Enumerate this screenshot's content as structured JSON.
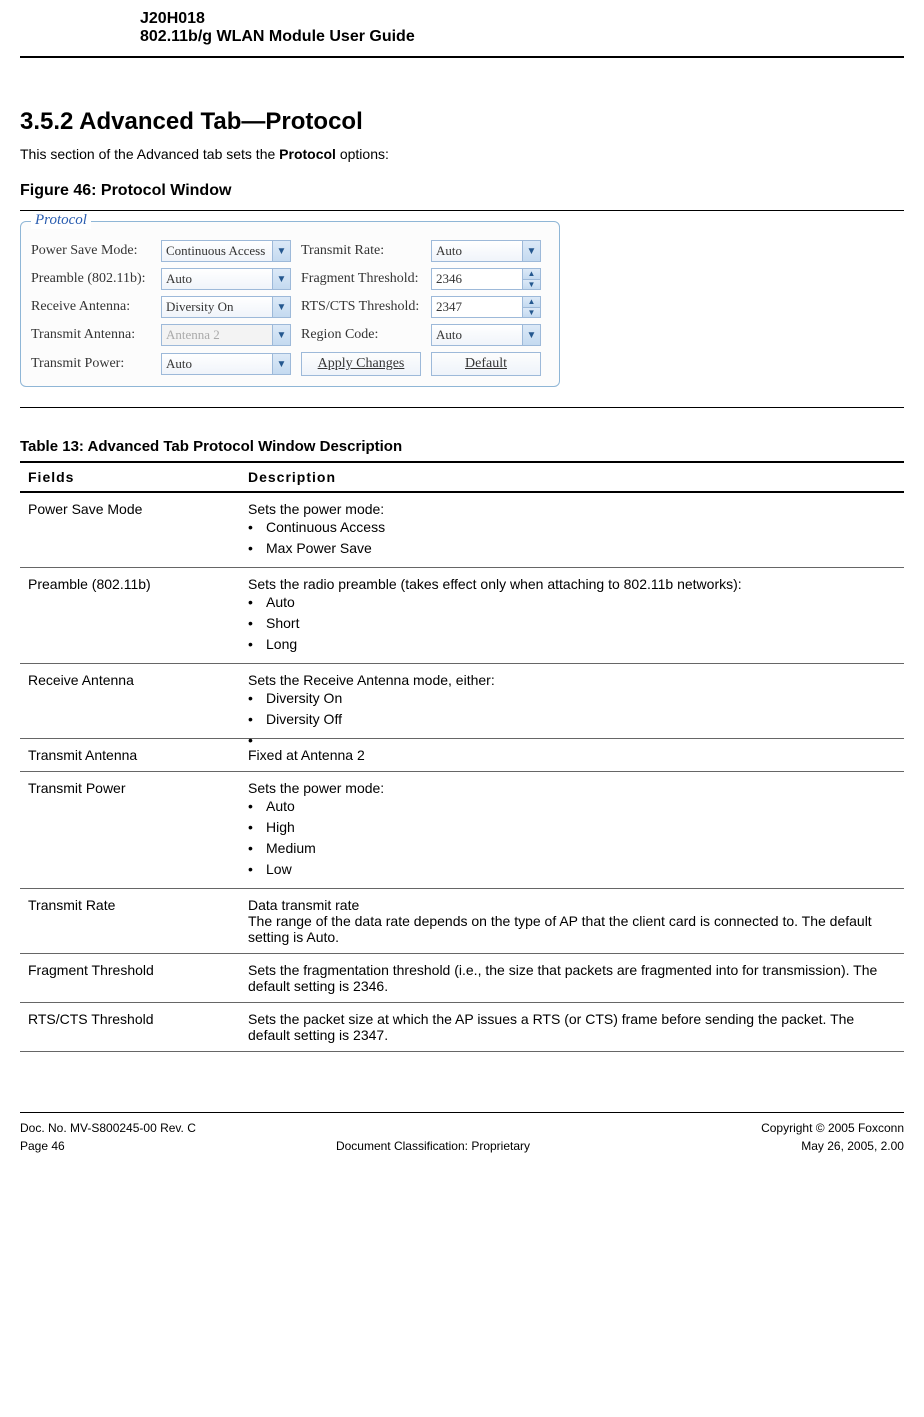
{
  "header": {
    "code": "J20H018",
    "title": "802.11b/g WLAN Module User Guide"
  },
  "section": {
    "number_title": "3.5.2     Advanced Tab—Protocol",
    "intro_prefix": "This section of the Advanced tab sets the ",
    "intro_bold": "Protocol",
    "intro_suffix": " options:"
  },
  "figure": {
    "caption": "Figure 46: Protocol Window",
    "legend": "Protocol",
    "rows": {
      "power_save_label": "Power Save Mode:",
      "power_save_value": "Continuous Access",
      "transmit_rate_label": "Transmit Rate:",
      "transmit_rate_value": "Auto",
      "preamble_label": "Preamble (802.11b):",
      "preamble_value": "Auto",
      "frag_label": "Fragment Threshold:",
      "frag_value": "2346",
      "recv_ant_label": "Receive Antenna:",
      "recv_ant_value": "Diversity On",
      "rts_label": "RTS/CTS Threshold:",
      "rts_value": "2347",
      "tx_ant_label": "Transmit Antenna:",
      "tx_ant_value": "Antenna 2",
      "region_label": "Region Code:",
      "region_value": "Auto",
      "tx_power_label": "Transmit Power:",
      "tx_power_value": "Auto",
      "apply_btn": "Apply Changes",
      "default_btn": "Default"
    }
  },
  "table": {
    "caption": "Table 13:    Advanced Tab Protocol Window Description",
    "header_fields": "Fields",
    "header_desc": "Description",
    "rows": [
      {
        "field": "Power Save Mode",
        "desc_lead": "Sets the power mode:",
        "bullets": [
          "Continuous Access",
          "Max Power Save"
        ]
      },
      {
        "field": "Preamble (802.11b)",
        "desc_lead": "Sets the radio preamble (takes effect only when attaching to 802.11b networks):",
        "bullets": [
          "Auto",
          "Short",
          "Long"
        ]
      },
      {
        "field": "Receive Antenna",
        "desc_lead": "Sets the Receive Antenna mode, either:",
        "bullets": [
          "Diversity On",
          "Diversity Off",
          ""
        ]
      },
      {
        "field": "Transmit Antenna",
        "desc_lead": "Fixed at Antenna 2",
        "bullets": []
      },
      {
        "field": "Transmit Power",
        "desc_lead": "Sets the power mode:",
        "bullets": [
          "Auto",
          "High",
          "Medium",
          "Low"
        ]
      },
      {
        "field": "Transmit Rate",
        "desc_lead": "Data transmit rate",
        "desc_tail": "The range of the data rate depends on the type of AP that the client card is connected to. The default setting is Auto.",
        "bullets": []
      },
      {
        "field": "Fragment Threshold",
        "desc_lead": "Sets the fragmentation threshold (i.e., the size that packets are fragmented into for transmission). The default setting is 2346.",
        "bullets": []
      },
      {
        "field": "RTS/CTS Threshold",
        "desc_lead": "Sets the packet size at which the AP issues a RTS (or CTS) frame before sending the packet. The default setting is 2347.",
        "bullets": []
      }
    ]
  },
  "footer": {
    "doc_no": "Doc. No. MV-S800245-00 Rev. C",
    "copyright": "Copyright © 2005 Foxconn",
    "page": "Page 46",
    "classification": "Document Classification: Proprietary",
    "date": "May 26, 2005, 2.00"
  }
}
